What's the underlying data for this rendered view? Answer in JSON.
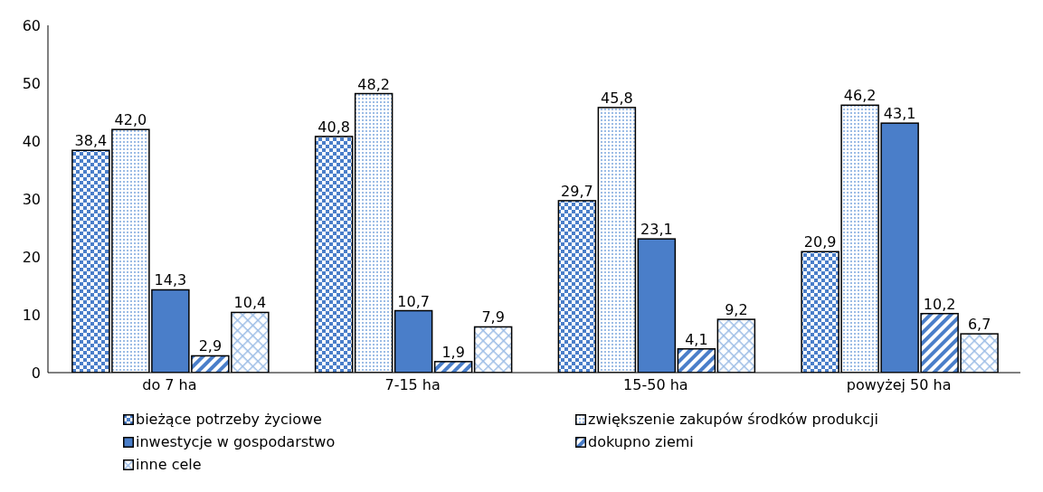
{
  "chart_data": {
    "type": "bar",
    "categories": [
      "do 7 ha",
      "7-15 ha",
      "15-50 ha",
      "powyżej 50 ha"
    ],
    "series": [
      {
        "name": "bieżące potrzeby życiowe",
        "color": "#4a7ec9",
        "values": [
          38.4,
          40.8,
          29.7,
          20.9
        ],
        "value_labels": [
          "38,4",
          "40,8",
          "29,7",
          "20,9"
        ]
      },
      {
        "name": "zwiększenie zakupów środków produkcji",
        "color": "#9dbde6",
        "values": [
          42.0,
          48.2,
          45.8,
          46.2
        ],
        "value_labels": [
          "42,0",
          "48,2",
          "45,8",
          "46,2"
        ]
      },
      {
        "name": "inwestycje w gospodarstwo",
        "color": "#4a7ec9",
        "values": [
          14.3,
          10.7,
          23.1,
          43.1
        ],
        "value_labels": [
          "14,3",
          "10,7",
          "23,1",
          "43,1"
        ]
      },
      {
        "name": "dokupno ziemi",
        "color": "#4a7ec9",
        "values": [
          2.9,
          1.9,
          4.1,
          10.2
        ],
        "value_labels": [
          "2,9",
          "1,9",
          "4,1",
          "10,2"
        ]
      },
      {
        "name": "inne cele",
        "color": "#9dbde6",
        "values": [
          10.4,
          7.9,
          9.2,
          6.7
        ],
        "value_labels": [
          "10,4",
          "7,9",
          "9,2",
          "6,7"
        ]
      }
    ],
    "ylim": [
      0,
      60
    ],
    "yticks": [
      0,
      10,
      20,
      30,
      40,
      50,
      60
    ],
    "grid": false,
    "legend": "bottom"
  }
}
